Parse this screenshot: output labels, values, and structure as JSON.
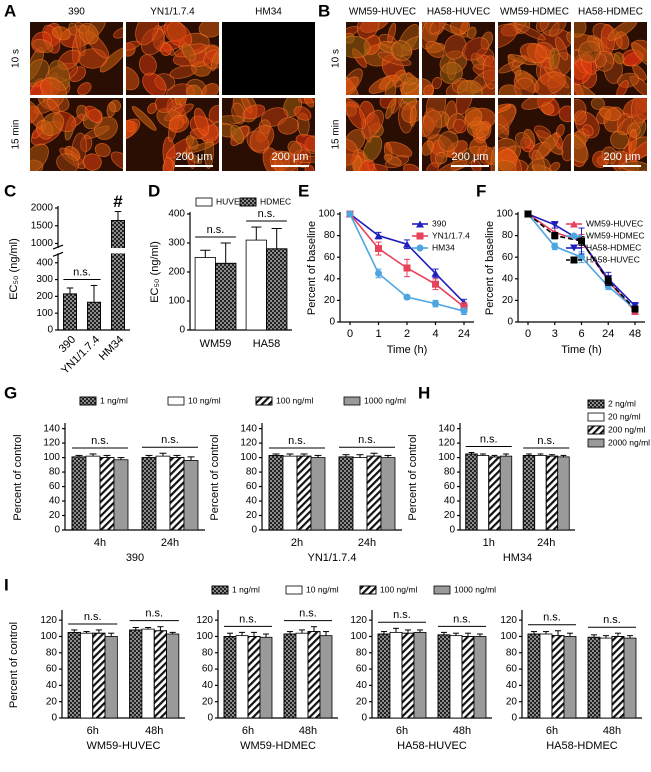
{
  "panel_labels": [
    "A",
    "B",
    "C",
    "D",
    "E",
    "F",
    "G",
    "H",
    "I"
  ],
  "image_panels": [
    {
      "columns": [
        "390",
        "YN1/1.7.4",
        "HM34"
      ],
      "rows": [
        "10 s",
        "15 min"
      ],
      "scale_bars": [
        "200 μm",
        "200 μm"
      ]
    },
    {
      "columns": [
        "WM59-HUVEC",
        "HA58-HUVEC",
        "WM59-HDMEC",
        "HA58-HDMEC"
      ],
      "rows": [
        "10 s",
        "15 min"
      ],
      "scale_bars": [
        "200 μm",
        "200 μm"
      ]
    }
  ],
  "chart_data": [
    {
      "type": "bar",
      "ylabel": "EC₅₀ (ng/ml)",
      "categories": [
        "390",
        "YN1/1.7.4",
        "HM34"
      ],
      "series": [
        {
          "color": "#8c8c8c",
          "pattern": "checker",
          "values": [
            215,
            165,
            1650
          ],
          "errors": [
            35,
            100,
            250
          ]
        }
      ],
      "ylim": [
        0,
        2000
      ],
      "yticks": [
        0,
        100,
        200,
        300,
        400,
        1000,
        1500,
        2000
      ],
      "axis_break": [
        450,
        900
      ],
      "annotations": [
        "n.s.",
        "#"
      ]
    },
    {
      "type": "bar",
      "ylabel": "EC₅₀ (ng/ml)",
      "categories": [
        "WM59",
        "HA58"
      ],
      "legend": "top",
      "series": [
        {
          "name": "HUVEC",
          "color": "#ffffff",
          "pattern": "solid",
          "values": [
            250,
            310
          ],
          "errors": [
            25,
            45
          ]
        },
        {
          "name": "HDMEC",
          "color": "#8c8c8c",
          "pattern": "checker",
          "values": [
            230,
            280
          ],
          "errors": [
            70,
            70
          ]
        }
      ],
      "ylim": [
        0,
        400
      ],
      "yticks": [
        0,
        100,
        200,
        300,
        400
      ],
      "annotations": [
        "n.s.",
        "n.s."
      ]
    },
    {
      "type": "line",
      "xlabel": "Time (h)",
      "ylabel": "Percent of baseline",
      "categories": [
        "0",
        "1",
        "2",
        "4",
        "24"
      ],
      "legend": "upper right",
      "series": [
        {
          "name": "390",
          "color": "#1f1fbf",
          "marker": "triangle",
          "values": [
            100,
            80,
            72,
            45,
            18
          ],
          "errors": [
            0,
            3,
            4,
            4,
            3
          ]
        },
        {
          "name": "YN1/1.7.4",
          "color": "#e8415a",
          "marker": "square",
          "values": [
            100,
            68,
            50,
            35,
            14
          ],
          "errors": [
            0,
            6,
            8,
            5,
            4
          ]
        },
        {
          "name": "HM34",
          "color": "#4da6e0",
          "marker": "circle",
          "values": [
            100,
            45,
            23,
            17,
            10
          ],
          "errors": [
            0,
            4,
            2,
            3,
            3
          ]
        }
      ],
      "ylim": [
        0,
        100
      ],
      "yticks": [
        0,
        20,
        40,
        60,
        80,
        100
      ]
    },
    {
      "type": "line",
      "xlabel": "Time (h)",
      "ylabel": "Percent of baseline",
      "categories": [
        "0",
        "3",
        "6",
        "24",
        "48"
      ],
      "legend": "upper right",
      "series": [
        {
          "name": "WM59-HUVEC",
          "color": "#e8415a",
          "marker": "triangle",
          "values": [
            100,
            83,
            75,
            38,
            10
          ],
          "errors": [
            0,
            4,
            6,
            5,
            3
          ]
        },
        {
          "name": "WM59-HDMEC",
          "color": "#4da6e0",
          "marker": "circle",
          "values": [
            100,
            70,
            60,
            33,
            12
          ],
          "errors": [
            0,
            3,
            5,
            3,
            2
          ]
        },
        {
          "name": "HA58-HDMEC",
          "color": "#1f1fbf",
          "marker": "triangle-down",
          "values": [
            100,
            90,
            75,
            40,
            15
          ],
          "errors": [
            0,
            3,
            12,
            6,
            3
          ]
        },
        {
          "name": "HA58-HUVEC",
          "color": "#000000",
          "marker": "square",
          "dash": true,
          "values": [
            100,
            80,
            75,
            38,
            12
          ],
          "errors": [
            0,
            3,
            4,
            4,
            2
          ]
        }
      ],
      "ylim": [
        0,
        100
      ],
      "yticks": [
        0,
        20,
        40,
        60,
        80,
        100
      ]
    },
    {
      "type": "bar",
      "xlabel": "390",
      "ylabel": "Percent of control",
      "categories": [
        "4h",
        "24h"
      ],
      "legend": "top",
      "series": [
        {
          "name": "1 ng/ml",
          "color": "#8c8c8c",
          "pattern": "checker",
          "values": [
            101,
            100
          ],
          "errors": [
            2,
            3
          ]
        },
        {
          "name": "10 ng/ml",
          "color": "#ffffff",
          "pattern": "solid",
          "values": [
            102,
            102
          ],
          "errors": [
            3,
            4
          ]
        },
        {
          "name": "100 ng/ml",
          "color": "#ffffff",
          "pattern": "hatch",
          "values": [
            100,
            100
          ],
          "errors": [
            3,
            3
          ]
        },
        {
          "name": "1000 ng/ml",
          "color": "#9a9a9a",
          "pattern": "solid",
          "values": [
            97,
            96
          ],
          "errors": [
            3,
            5
          ]
        }
      ],
      "ylim": [
        0,
        145
      ],
      "yticks": [
        0,
        20,
        40,
        60,
        80,
        100,
        120,
        140
      ],
      "annotations": [
        "n.s.",
        "n.s."
      ]
    },
    {
      "type": "bar",
      "xlabel": "YN1/1.7.4",
      "ylabel": "Percent of control",
      "categories": [
        "2h",
        "24h"
      ],
      "series": [
        {
          "color": "#8c8c8c",
          "pattern": "checker",
          "values": [
            103,
            101
          ],
          "errors": [
            2,
            3
          ]
        },
        {
          "color": "#ffffff",
          "pattern": "solid",
          "values": [
            102,
            100
          ],
          "errors": [
            3,
            4
          ]
        },
        {
          "color": "#ffffff",
          "pattern": "hatch",
          "values": [
            102,
            102
          ],
          "errors": [
            3,
            4
          ]
        },
        {
          "color": "#9a9a9a",
          "pattern": "solid",
          "values": [
            100,
            100
          ],
          "errors": [
            3,
            3
          ]
        }
      ],
      "ylim": [
        0,
        145
      ],
      "yticks": [
        0,
        20,
        40,
        60,
        80,
        100,
        120,
        140
      ],
      "annotations": [
        "n.s.",
        "n.s."
      ]
    },
    {
      "type": "bar",
      "xlabel": "HM34",
      "ylabel": "Percent of control",
      "categories": [
        "1h",
        "24h"
      ],
      "legend": "right",
      "series": [
        {
          "name": "2 ng/ml",
          "color": "#8c8c8c",
          "pattern": "checker",
          "values": [
            105,
            103
          ],
          "errors": [
            2,
            2
          ]
        },
        {
          "name": "20 ng/ml",
          "color": "#ffffff",
          "pattern": "solid",
          "values": [
            103,
            103
          ],
          "errors": [
            2,
            2
          ]
        },
        {
          "name": "200 ng/ml",
          "color": "#ffffff",
          "pattern": "hatch",
          "values": [
            101,
            102
          ],
          "errors": [
            2,
            2
          ]
        },
        {
          "name": "2000 ng/ml",
          "color": "#9a9a9a",
          "pattern": "solid",
          "values": [
            102,
            101
          ],
          "errors": [
            3,
            2
          ]
        }
      ],
      "ylim": [
        0,
        145
      ],
      "yticks": [
        0,
        20,
        40,
        60,
        80,
        100,
        120,
        140
      ],
      "annotations": [
        "n.s.",
        "n.s."
      ]
    },
    {
      "type": "bar",
      "xlabel": "WM59-HUVEC",
      "ylabel": "Percent of control",
      "categories": [
        "6h",
        "48h"
      ],
      "legend": "top",
      "series": [
        {
          "name": "1 ng/ml",
          "color": "#8c8c8c",
          "pattern": "checker",
          "values": [
            105,
            108
          ],
          "errors": [
            3,
            3
          ]
        },
        {
          "name": "10 ng/ml",
          "color": "#ffffff",
          "pattern": "solid",
          "values": [
            104,
            109
          ],
          "errors": [
            2,
            2
          ]
        },
        {
          "name": "100 ng/ml",
          "color": "#ffffff",
          "pattern": "hatch",
          "values": [
            104,
            107
          ],
          "errors": [
            4,
            5
          ]
        },
        {
          "name": "1000 ng/ml",
          "color": "#9a9a9a",
          "pattern": "solid",
          "values": [
            100,
            103
          ],
          "errors": [
            4,
            2
          ]
        }
      ],
      "ylim": [
        0,
        130
      ],
      "yticks": [
        0,
        20,
        40,
        60,
        80,
        100,
        120
      ],
      "annotations": [
        "n.s.",
        "n.s."
      ]
    },
    {
      "type": "bar",
      "xlabel": "WM59-HDMEC",
      "categories": [
        "6h",
        "48h"
      ],
      "series": [
        {
          "color": "#8c8c8c",
          "pattern": "checker",
          "values": [
            100,
            103
          ],
          "errors": [
            4,
            3
          ]
        },
        {
          "color": "#ffffff",
          "pattern": "solid",
          "values": [
            101,
            104
          ],
          "errors": [
            4,
            4
          ]
        },
        {
          "color": "#ffffff",
          "pattern": "hatch",
          "values": [
            100,
            106
          ],
          "errors": [
            5,
            6
          ]
        },
        {
          "color": "#9a9a9a",
          "pattern": "solid",
          "values": [
            99,
            101
          ],
          "errors": [
            4,
            5
          ]
        }
      ],
      "ylim": [
        0,
        130
      ],
      "yticks": [
        0,
        20,
        40,
        60,
        80,
        100,
        120
      ],
      "annotations": [
        "n.s.",
        "n.s."
      ]
    },
    {
      "type": "bar",
      "xlabel": "HA58-HUVEC",
      "categories": [
        "6h",
        "48h"
      ],
      "series": [
        {
          "color": "#8c8c8c",
          "pattern": "checker",
          "values": [
            103,
            102
          ],
          "errors": [
            3,
            3
          ]
        },
        {
          "color": "#ffffff",
          "pattern": "solid",
          "values": [
            105,
            101
          ],
          "errors": [
            5,
            3
          ]
        },
        {
          "color": "#ffffff",
          "pattern": "hatch",
          "values": [
            104,
            100
          ],
          "errors": [
            4,
            4
          ]
        },
        {
          "color": "#9a9a9a",
          "pattern": "solid",
          "values": [
            105,
            100
          ],
          "errors": [
            3,
            3
          ]
        }
      ],
      "ylim": [
        0,
        130
      ],
      "yticks": [
        0,
        20,
        40,
        60,
        80,
        100,
        120
      ],
      "annotations": [
        "n.s.",
        "n.s."
      ]
    },
    {
      "type": "bar",
      "xlabel": "HA58-HDMEC",
      "categories": [
        "6h",
        "48h"
      ],
      "series": [
        {
          "color": "#8c8c8c",
          "pattern": "checker",
          "values": [
            103,
            99
          ],
          "errors": [
            3,
            3
          ]
        },
        {
          "color": "#ffffff",
          "pattern": "solid",
          "values": [
            103,
            98
          ],
          "errors": [
            3,
            3
          ]
        },
        {
          "color": "#ffffff",
          "pattern": "hatch",
          "values": [
            101,
            100
          ],
          "errors": [
            6,
            4
          ]
        },
        {
          "color": "#9a9a9a",
          "pattern": "solid",
          "values": [
            100,
            98
          ],
          "errors": [
            4,
            3
          ]
        }
      ],
      "ylim": [
        0,
        130
      ],
      "yticks": [
        0,
        20,
        40,
        60,
        80,
        100,
        120
      ],
      "annotations": [
        "n.s.",
        "n.s."
      ]
    }
  ]
}
